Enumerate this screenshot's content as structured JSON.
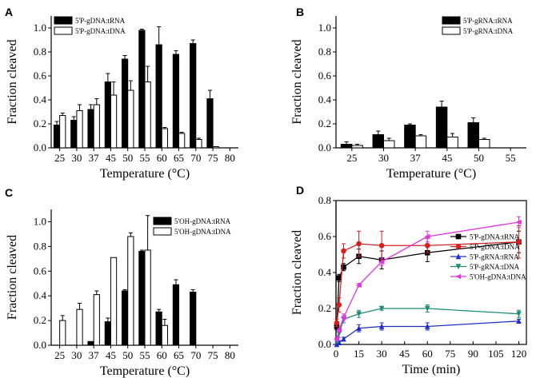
{
  "chart_data": [
    {
      "panel": "A",
      "type": "bar",
      "xlabel": "Temperature (°C)",
      "ylabel": "Fraction cleaved",
      "ylim": [
        0,
        1.1
      ],
      "yticks": [
        "0.0",
        "0.2",
        "0.4",
        "0.6",
        "0.8",
        "1.0"
      ],
      "categories": [
        "25",
        "30",
        "37",
        "45",
        "50",
        "55",
        "60",
        "65",
        "70",
        "75",
        "80"
      ],
      "series": [
        {
          "name": "5'P-gDNA:tRNA",
          "color": "#000000",
          "values": [
            0.19,
            0.23,
            0.32,
            0.55,
            0.74,
            0.98,
            0.86,
            0.78,
            0.87,
            0.41,
            0
          ],
          "errors": [
            0.03,
            0.03,
            0.04,
            0.07,
            0.03,
            0.01,
            0.15,
            0.03,
            0.03,
            0.07,
            0
          ]
        },
        {
          "name": "5'P-gDNA:tDNA",
          "color": "#ffffff",
          "values": [
            0.27,
            0.31,
            0.36,
            0.44,
            0.48,
            0.55,
            0.16,
            0.12,
            0.07,
            0.01,
            0
          ],
          "errors": [
            0.02,
            0.05,
            0.05,
            0.11,
            0.08,
            0.13,
            0.01,
            0.01,
            0.01,
            0,
            0
          ]
        }
      ],
      "legend_position": "top-left"
    },
    {
      "panel": "B",
      "type": "bar",
      "xlabel": "Temperature (°C)",
      "ylabel": "Fraction cleaved",
      "ylim": [
        0,
        1.1
      ],
      "yticks": [
        "0.0",
        "0.2",
        "0.4",
        "0.6",
        "0.8",
        "1.0"
      ],
      "categories": [
        "25",
        "30",
        "37",
        "45",
        "50",
        "55"
      ],
      "series": [
        {
          "name": "5'P-gRNA:tRNA",
          "color": "#000000",
          "values": [
            0.03,
            0.11,
            0.19,
            0.34,
            0.21,
            0
          ],
          "errors": [
            0.02,
            0.03,
            0.01,
            0.05,
            0.04,
            0
          ]
        },
        {
          "name": "5'P-gRNA:tDNA",
          "color": "#ffffff",
          "values": [
            0.02,
            0.06,
            0.1,
            0.09,
            0.07,
            0
          ],
          "errors": [
            0.01,
            0.02,
            0.01,
            0.03,
            0.01,
            0
          ]
        }
      ],
      "legend_position": "top-right"
    },
    {
      "panel": "C",
      "type": "bar",
      "xlabel": "Temperature (°C)",
      "ylabel": "Fraction cleaved",
      "ylim": [
        0,
        1.1
      ],
      "yticks": [
        "0.0",
        "0.2",
        "0.4",
        "0.6",
        "0.8",
        "1.0"
      ],
      "categories": [
        "25",
        "30",
        "37",
        "45",
        "50",
        "55",
        "60",
        "65",
        "70",
        "75",
        "80"
      ],
      "series": [
        {
          "name": "5'OH-gDNA:tRNA",
          "color": "#000000",
          "values": [
            0,
            0,
            0.03,
            0.19,
            0.44,
            0.76,
            0.27,
            0.49,
            0.43,
            0,
            0
          ],
          "errors": [
            0,
            0,
            0,
            0.03,
            0.01,
            0.01,
            0.02,
            0.04,
            0.02,
            0,
            0
          ]
        },
        {
          "name": "5'OH-gDNA:tDNA",
          "color": "#ffffff",
          "values": [
            0.2,
            0.29,
            0.41,
            0.71,
            0.88,
            0.77,
            0.16,
            0,
            0,
            0,
            0
          ],
          "errors": [
            0.04,
            0.05,
            0.03,
            0,
            0.03,
            0.28,
            0.05,
            0,
            0,
            0,
            0
          ]
        }
      ],
      "legend_position": "top-right"
    },
    {
      "panel": "D",
      "type": "line",
      "xlabel": "Time (min)",
      "ylabel": "Fraction cleaved",
      "xlim": [
        0,
        125
      ],
      "ylim": [
        0,
        0.8
      ],
      "xticks": [
        "0",
        "15",
        "30",
        "45",
        "60",
        "75",
        "90",
        "105",
        "120"
      ],
      "yticks": [
        "0.0",
        "0.2",
        "0.4",
        "0.6",
        "0.8"
      ],
      "x": [
        0.5,
        2,
        5,
        15,
        30,
        60,
        120
      ],
      "series": [
        {
          "name": "5'P-gDNA:tRNA",
          "color": "#000000",
          "marker": "square",
          "y": [
            0.1,
            0.37,
            0.43,
            0.49,
            0.47,
            0.51,
            0.57
          ],
          "errors": [
            0.02,
            0.02,
            0.02,
            0.04,
            0.05,
            0.05,
            0.06
          ]
        },
        {
          "name": "5'P-gDNA:tDNA",
          "color": "#d62020",
          "marker": "circle",
          "y": [
            0.12,
            0.22,
            0.52,
            0.56,
            0.55,
            0.55,
            0.57
          ],
          "errors": [
            0.02,
            0.04,
            0.04,
            0.07,
            0.08,
            0.04,
            0.09
          ]
        },
        {
          "name": "5'P-gRNA:tRNA",
          "color": "#1f2ec8",
          "marker": "triangle-up",
          "y": [
            0,
            0.01,
            0.03,
            0.09,
            0.1,
            0.1,
            0.13
          ],
          "errors": [
            0,
            0.01,
            0.01,
            0.02,
            0.02,
            0.02,
            0.01
          ]
        },
        {
          "name": "5'P-gRNA:tDNA",
          "color": "#1f8a78",
          "marker": "triangle-down",
          "y": [
            0.02,
            0.06,
            0.14,
            0.17,
            0.2,
            0.2,
            0.17
          ],
          "errors": [
            0.01,
            0.02,
            0.02,
            0.02,
            0.01,
            0.02,
            0.02
          ]
        },
        {
          "name": "5'OH-gDNA:tDNA",
          "color": "#e034e0",
          "marker": "triangle-left",
          "y": [
            0.03,
            0.08,
            0.15,
            0.33,
            0.46,
            0.6,
            0.68
          ],
          "errors": [
            0.01,
            0.01,
            0.02,
            0.01,
            0.02,
            0.03,
            0.03
          ]
        }
      ],
      "legend_position": "center-right"
    }
  ]
}
